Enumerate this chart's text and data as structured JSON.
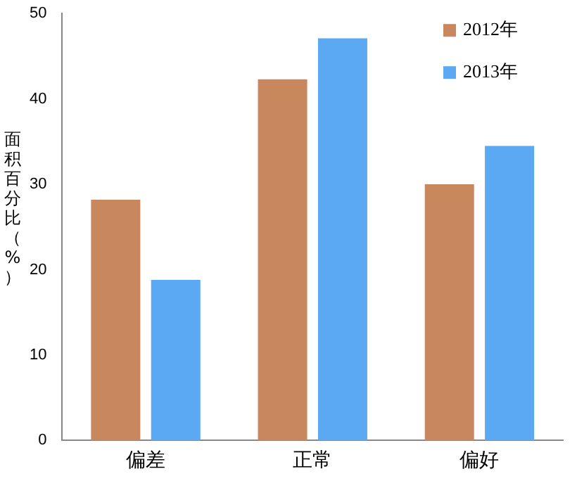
{
  "chart_data": {
    "type": "bar",
    "ylabel": "面积百分比（%）",
    "categories": [
      "偏差",
      "正常",
      "偏好"
    ],
    "series": [
      {
        "name": "2012年",
        "color": "#c8875c",
        "values": [
          28.2,
          42.3,
          30.0
        ]
      },
      {
        "name": "2013年",
        "color": "#5aa9f2",
        "values": [
          18.8,
          47.1,
          34.5
        ]
      }
    ],
    "ylim": [
      0,
      50
    ],
    "yticks": [
      0,
      10,
      20,
      30,
      40,
      50
    ],
    "grid": false,
    "legend": "top right"
  }
}
